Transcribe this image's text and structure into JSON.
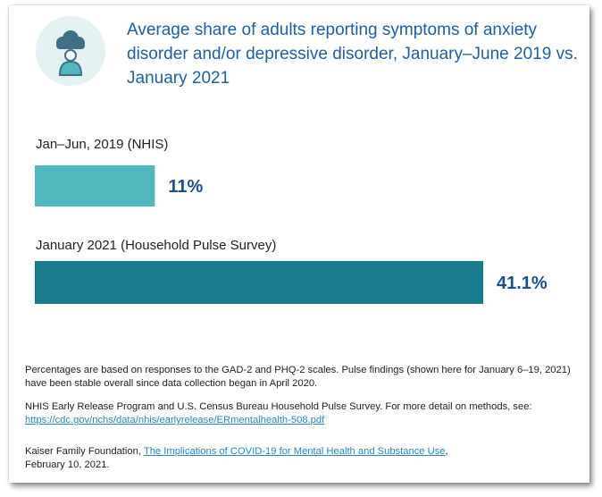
{
  "title": "Average share of adults reporting symptoms of anxiety disorder and/or depressive disorder, January–June 2019 vs. January 2021",
  "icon": "person-with-cloud-icon",
  "colors": {
    "title": "#1f5fa0",
    "bar1": "#50b7bf",
    "bar2": "#1a7d8f",
    "value": "#1b4f8a",
    "link": "#2a84c6"
  },
  "chart_data": {
    "type": "bar",
    "orientation": "horizontal",
    "categories": [
      "Jan–Jun, 2019 (NHIS)",
      "January 2021 (Household Pulse Survey)"
    ],
    "values": [
      11,
      41.1
    ],
    "value_labels": [
      "11%",
      "41.1%"
    ],
    "xlim": [
      0,
      41.1
    ],
    "grid": false,
    "legend": "none"
  },
  "notes": {
    "methods": "Percentages are based on responses to the GAD-2 and PHQ-2 scales. Pulse findings (shown here for January 6–19, 2021) have been stable overall since data collection began in April 2020.",
    "source_text": "NHIS Early Release Program and U.S. Census Bureau Household Pulse Survey. For more detail on methods, see:",
    "source_url": "https://cdc.gov/nchs/data/nhis/earlyrelease/ERmentalhealth-508.pdf",
    "citation_org": "Kaiser Family Foundation, ",
    "citation_link": "The Implications of COVID-19 for Mental Health and Substance Use",
    "citation_date": ",\nFebruary 10, 2021."
  }
}
